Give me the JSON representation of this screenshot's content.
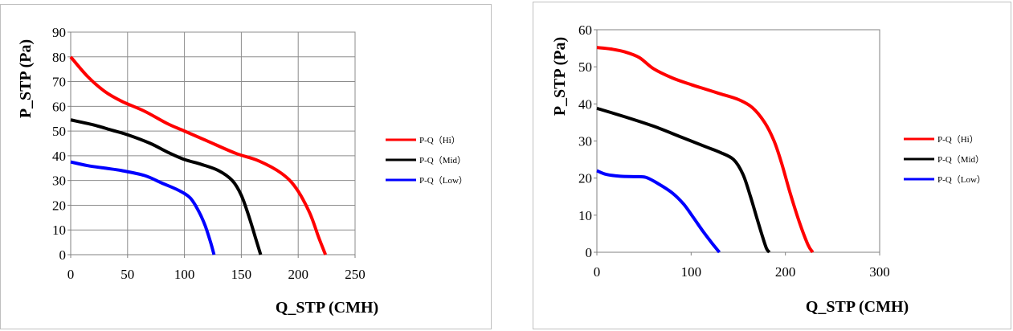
{
  "chart_data": [
    {
      "type": "line",
      "xlabel": "Q_STP (CMH)",
      "ylabel": "P_STP (Pa)",
      "xlim": [
        0,
        250
      ],
      "ylim": [
        0,
        90
      ],
      "xticks": [
        "0",
        "50",
        "100",
        "150",
        "200",
        "250"
      ],
      "yticks": [
        "0",
        "10",
        "20",
        "30",
        "40",
        "50",
        "60",
        "70",
        "80",
        "90"
      ],
      "grid": true,
      "legend_position": "right",
      "series": [
        {
          "name": "P-Q（Hi）",
          "color": "#ff0000",
          "x": [
            0,
            15,
            30,
            45,
            65,
            85,
            100,
            120,
            145,
            165,
            185,
            198,
            210,
            218,
            224
          ],
          "y": [
            80,
            72,
            66,
            62,
            58,
            53,
            50,
            46,
            41,
            38,
            33,
            27,
            17,
            7,
            0
          ]
        },
        {
          "name": "P-Q（Mid）",
          "color": "#000000",
          "x": [
            0,
            20,
            35,
            50,
            70,
            85,
            100,
            115,
            130,
            142,
            150,
            157,
            163,
            167
          ],
          "y": [
            54.5,
            52.5,
            50.5,
            48.5,
            45,
            41.5,
            38.5,
            36.5,
            34,
            30,
            24,
            15,
            6,
            0
          ]
        },
        {
          "name": "P-Q（Low）",
          "color": "#0000ff",
          "x": [
            0,
            15,
            30,
            45,
            65,
            80,
            95,
            105,
            112,
            118,
            123,
            126
          ],
          "y": [
            37.5,
            36,
            35,
            34,
            32,
            29,
            26,
            23,
            18,
            12,
            5,
            0
          ]
        }
      ]
    },
    {
      "type": "line",
      "xlabel": "Q_STP (CMH)",
      "ylabel": "P_STP (Pa)",
      "xlim": [
        0,
        300
      ],
      "ylim": [
        0,
        60
      ],
      "xticks": [
        "0",
        "100",
        "200",
        "300"
      ],
      "yticks": [
        "0",
        "10",
        "20",
        "30",
        "40",
        "50",
        "60"
      ],
      "grid": false,
      "legend_position": "right",
      "series": [
        {
          "name": "P-Q（Hi）",
          "color": "#ff0000",
          "x": [
            0,
            15,
            30,
            45,
            60,
            80,
            100,
            115,
            130,
            150,
            165,
            178,
            188,
            196,
            205,
            215,
            224,
            229
          ],
          "y": [
            55.2,
            54.8,
            54,
            52.5,
            49.5,
            47,
            45.2,
            44,
            42.8,
            41.2,
            39,
            35,
            30,
            24,
            16,
            8,
            2,
            0
          ]
        },
        {
          "name": "P-Q（Mid）",
          "color": "#000000",
          "x": [
            0,
            30,
            60,
            90,
            115,
            130,
            145,
            155,
            163,
            170,
            176,
            180,
            183
          ],
          "y": [
            38.8,
            36.5,
            34,
            31,
            28.5,
            27,
            25,
            21,
            15,
            9,
            4,
            1,
            0
          ]
        },
        {
          "name": "P-Q（Low）",
          "color": "#0000ff",
          "x": [
            0,
            10,
            25,
            40,
            52,
            65,
            80,
            92,
            102,
            113,
            122,
            130
          ],
          "y": [
            22,
            21,
            20.5,
            20.4,
            20.2,
            18.5,
            16,
            13,
            9.5,
            5.5,
            2.5,
            0
          ]
        }
      ]
    }
  ]
}
